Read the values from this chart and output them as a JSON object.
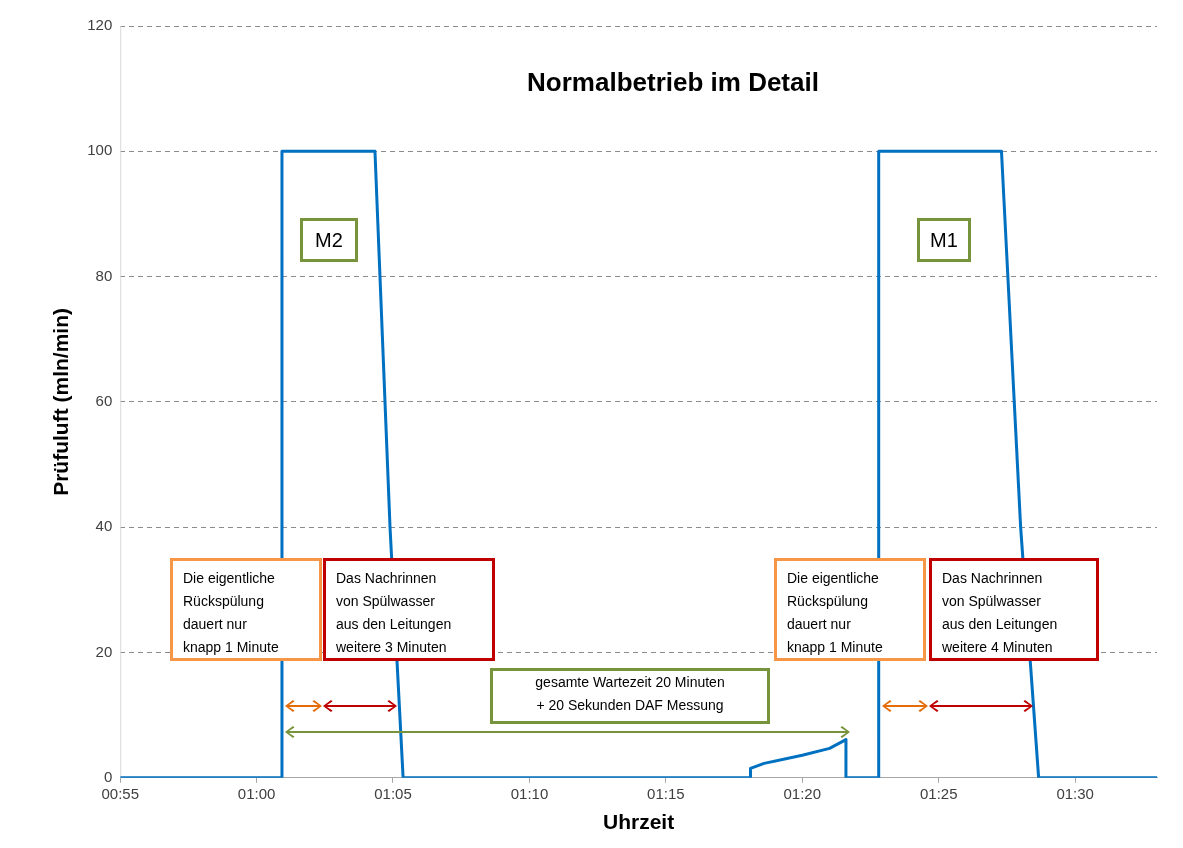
{
  "chart_data": {
    "type": "line",
    "title": "Normalbetrieb im Detail",
    "xlabel": "Uhrzeit",
    "ylabel": "Prüfuluft (mln/min)",
    "series": [
      {
        "color": "#0070c0",
        "x": [
          0.9167,
          1.0155,
          1.0155,
          1.0723,
          1.0815,
          1.0895,
          1.3017,
          1.3017,
          1.31,
          1.3333,
          1.35,
          1.36,
          1.36,
          1.38,
          1.38,
          1.455,
          1.4667,
          1.4777,
          1.55
        ],
        "values": [
          0,
          0,
          100,
          100,
          40,
          0,
          0,
          1.5,
          2.3,
          3.6,
          4.7,
          6.1,
          0,
          0,
          100,
          100,
          40,
          0,
          0
        ]
      }
    ],
    "xlim": [
      0.9167,
      1.55
    ],
    "xticks": [
      {
        "value": 0.9167,
        "label": "00:55"
      },
      {
        "value": 1.0,
        "label": "01:00"
      },
      {
        "value": 1.0833,
        "label": "01:05"
      },
      {
        "value": 1.1667,
        "label": "01:10"
      },
      {
        "value": 1.25,
        "label": "01:15"
      },
      {
        "value": 1.3333,
        "label": "01:20"
      },
      {
        "value": 1.4167,
        "label": "01:25"
      },
      {
        "value": 1.5,
        "label": "01:30"
      }
    ],
    "ylim": [
      0,
      120
    ],
    "yticks": [
      0,
      20,
      40,
      60,
      80,
      100,
      120
    ],
    "grid": "y",
    "legend": false,
    "marker": "none",
    "line_style": "solid",
    "annotations": [
      "M2",
      "M1",
      "Die eigentliche\nRückspülung\ndauert nur\nknapp 1 Minute",
      "Das Nachrinnen\nvon Spülwasser\naus den Leitungen\nweitere 3 Minuten",
      "Die eigentliche\nRückspülung\ndauert nur\nknapp 1 Minute",
      "Das Nachrinnen\nvon Spülwasser\naus den Leitungen\nweitere 4 Minuten",
      "gesamte Wartezeit 20 Minuten\n+ 20 Sekunden DAF Messung"
    ]
  }
}
